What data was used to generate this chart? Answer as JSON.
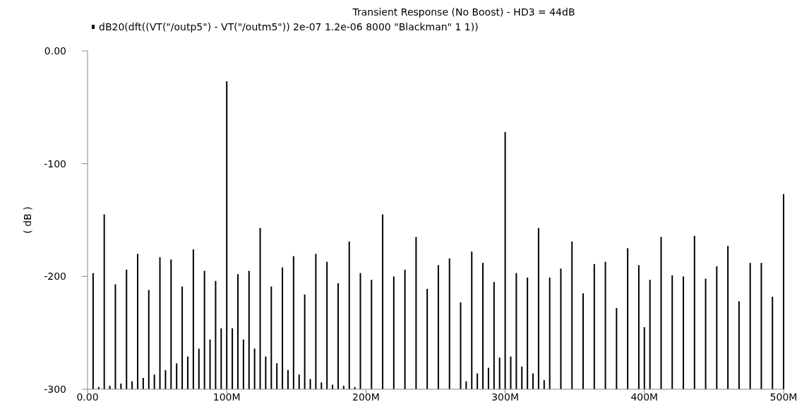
{
  "chart_data": {
    "type": "bar",
    "title": "Transient Response (No Boost) - HD3 = 44dB",
    "ylabel": "( dB )",
    "xlim": [
      0,
      500000000
    ],
    "xticks": [
      {
        "value": 0,
        "label": "0.00"
      },
      {
        "value": 100000000,
        "label": "100M"
      },
      {
        "value": 200000000,
        "label": "200M"
      },
      {
        "value": 300000000,
        "label": "300M"
      },
      {
        "value": 400000000,
        "label": "400M"
      },
      {
        "value": 500000000,
        "label": "500M"
      }
    ],
    "ylim": [
      -300,
      0
    ],
    "yticks": [
      {
        "value": 0,
        "label": "0.00"
      },
      {
        "value": -100,
        "label": "-100"
      },
      {
        "value": -200,
        "label": "-200"
      },
      {
        "value": -300,
        "label": "-300"
      }
    ],
    "legend": "top left",
    "grid": false,
    "series": [
      {
        "name": "dB20(dft((VT(\"/outp5\") - VT(\"/outm5\")) 2e-07 1.2e-06 8000 \"Blackman\" 1 1))",
        "color": "#000000",
        "x": [
          4000000,
          8000000,
          12000000,
          16000000,
          20000000,
          24000000,
          28000000,
          32000000,
          36000000,
          40000000,
          44000000,
          48000000,
          52000000,
          56000000,
          60000000,
          64000000,
          68000000,
          72000000,
          76000000,
          80000000,
          84000000,
          88000000,
          92000000,
          96000000,
          100000000,
          104000000,
          108000000,
          112000000,
          116000000,
          120000000,
          124000000,
          128000000,
          132000000,
          136000000,
          140000000,
          144000000,
          148000000,
          152000000,
          156000000,
          160000000,
          164000000,
          168000000,
          172000000,
          176000000,
          180000000,
          184000000,
          188000000,
          192000000,
          196000000,
          204000000,
          212000000,
          220000000,
          228000000,
          236000000,
          244000000,
          252000000,
          260000000,
          268000000,
          272000000,
          276000000,
          280000000,
          284000000,
          288000000,
          292000000,
          296000000,
          300000000,
          304000000,
          308000000,
          312000000,
          316000000,
          320000000,
          324000000,
          328000000,
          332000000,
          340000000,
          348000000,
          356000000,
          364000000,
          372000000,
          380000000,
          388000000,
          396000000,
          400000000,
          404000000,
          412000000,
          420000000,
          428000000,
          436000000,
          444000000,
          452000000,
          460000000,
          468000000,
          476000000,
          484000000,
          492000000,
          500000000
        ],
        "base": [
          -300,
          -300,
          -300,
          -300,
          -300,
          -300,
          -300,
          -300,
          -300,
          -300,
          -300,
          -300,
          -300,
          -300,
          -300,
          -300,
          -300,
          -300,
          -300,
          -300,
          -300,
          -300,
          -300,
          -300,
          -300,
          -300,
          -300,
          -300,
          -300,
          -300,
          -300,
          -300,
          -300,
          -300,
          -300,
          -300,
          -300,
          -300,
          -300,
          -300,
          -300,
          -300,
          -300,
          -300,
          -300,
          -300,
          -300,
          -300,
          -300,
          -300,
          -300,
          -300,
          -300,
          -300,
          -300,
          -300,
          -300,
          -300,
          -300,
          -300,
          -300,
          -300,
          -300,
          -300,
          -300,
          -300,
          -300,
          -300,
          -300,
          -300,
          -300,
          -300,
          -300,
          -300,
          -300,
          -300,
          -300,
          -300,
          -300,
          -300,
          -300,
          -300,
          -300,
          -300,
          -300,
          -300,
          -300,
          -300,
          -300,
          -300,
          -300,
          -300,
          -300,
          -300,
          -300,
          -300
        ],
        "values": [
          103,
          2,
          155,
          3,
          93,
          5,
          106,
          7,
          120,
          10,
          88,
          13,
          117,
          17,
          115,
          23,
          91,
          29,
          124,
          36,
          105,
          44,
          96,
          54,
          273,
          54,
          102,
          44,
          105,
          36,
          143,
          29,
          91,
          23,
          108,
          17,
          118,
          13,
          84,
          9,
          120,
          6,
          113,
          4,
          94,
          3,
          131,
          2,
          103,
          97,
          155,
          100,
          106,
          135,
          89,
          110,
          116,
          77,
          7,
          122,
          14,
          112,
          19,
          95,
          28,
          228,
          29,
          103,
          20,
          99,
          14,
          143,
          8,
          99,
          107,
          131,
          85,
          111,
          113,
          72,
          125,
          110,
          55,
          97,
          135,
          101,
          100,
          136,
          98,
          109,
          127,
          78,
          112,
          112,
          82,
          173
        ]
      }
    ]
  }
}
